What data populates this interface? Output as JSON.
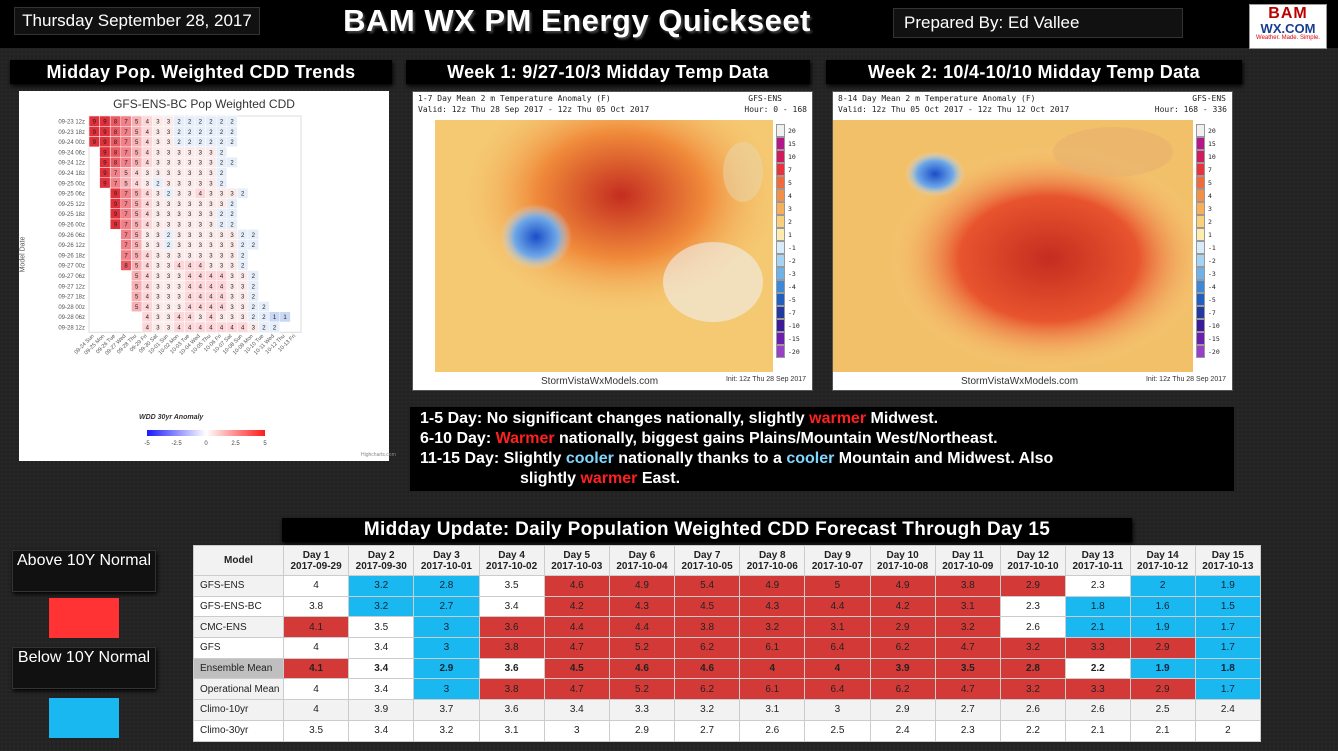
{
  "header": {
    "date": "Thursday September 28, 2017",
    "title": "BAM WX PM Energy Quickseet",
    "prepared": "Prepared By: Ed Vallee",
    "logo_top": "BAM",
    "logo_mid": "WX.COM",
    "logo_bot": "Weather. Made. Simple."
  },
  "sections": {
    "cdd": "Midday Pop. Weighted CDD Trends",
    "week1": "Week 1: 9/27-10/3 Midday Temp Data",
    "week2": "Week 2: 10/4-10/10 Midday Temp Data",
    "daily": "Midday Update: Daily Population Weighted CDD Forecast Through Day 15"
  },
  "cdd_chart": {
    "title": "GFS-ENS-BC Pop Weighted CDD",
    "ylabel": "Model Date",
    "legend_title": "WDD 30yr Anomaly",
    "legend_ticks": [
      "-5",
      "-2.5",
      "0",
      "2.5",
      "5"
    ],
    "credit": "Highcharts.com",
    "rows": [
      "09-23 12z",
      "09-23 18z",
      "09-24 00z",
      "09-24 06z",
      "09-24 12z",
      "09-24 18z",
      "09-25 00z",
      "09-25 06z",
      "09-25 12z",
      "09-25 18z",
      "09-26 00z",
      "09-26 06z",
      "09-26 12z",
      "09-26 18z",
      "09-27 00z",
      "09-27 06z",
      "09-27 12z",
      "09-27 18z",
      "09-28 00z",
      "09-28 06z",
      "09-28 12z"
    ],
    "cols": [
      "09-24 Sun",
      "09-25 Mon",
      "09-26 Tue",
      "09-27 Wed",
      "09-28 Thu",
      "09-29 Fri",
      "09-30 Sat",
      "10-01 Sun",
      "10-02 Mon",
      "10-03 Tue",
      "10-04 Wed",
      "10-05 Thu",
      "10-06 Fri",
      "10-07 Sat",
      "10-08 Sun",
      "10-09 Mon",
      "10-10 Tue",
      "10-11 Wed",
      "10-12 Thu",
      "10-13 Fri"
    ]
  },
  "map1": {
    "title": "1-7 Day Mean 2 m Temperature Anomaly (F)",
    "model": "GFS-ENS",
    "valid": "Valid: 12z Thu 28 Sep 2017 - 12z Thu 05 Oct 2017",
    "hour": "Hour: 0 - 168",
    "site": "StormVistaWxModels.com",
    "init": "Init: 12z Thu 28 Sep 2017"
  },
  "map2": {
    "title": "8-14 Day Mean 2 m Temperature Anomaly (F)",
    "model": "GFS-ENS",
    "valid": "Valid: 12z Thu 05 Oct 2017 - 12z Thu 12 Oct 2017",
    "hour": "Hour: 168 - 336",
    "site": "StormVistaWxModels.com",
    "init": "Init: 12z Thu 28 Sep 2017"
  },
  "map_scale": [
    "20",
    "15",
    "10",
    "7",
    "5",
    "4",
    "3",
    "2",
    "1",
    "-1",
    "-2",
    "-3",
    "-4",
    "-5",
    "-7",
    "-10",
    "-15",
    "-20"
  ],
  "notes": {
    "l1a": "1-5 Day: No significant changes nationally, slightly ",
    "l1b": "warmer",
    "l1c": " Midwest.",
    "l2a": "6-10 Day: ",
    "l2b": "Warmer",
    "l2c": " nationally, biggest gains Plains/Mountain West/Northeast.",
    "l3a": "11-15 Day: Slightly ",
    "l3b": "cooler",
    "l3c": " nationally thanks to a ",
    "l3d": "cooler",
    "l3e": " Mountain and Midwest. Also",
    "l4a": "slightly ",
    "l4b": "warmer",
    "l4c": " East."
  },
  "legend": {
    "above": "Above 10Y Normal",
    "below": "Below 10Y Normal",
    "above_color": "#ff3333",
    "below_color": "#1ab8f0"
  },
  "table": {
    "model_header": "Model",
    "days": [
      [
        "Day 1",
        "2017-09-29"
      ],
      [
        "Day 2",
        "2017-09-30"
      ],
      [
        "Day 3",
        "2017-10-01"
      ],
      [
        "Day 4",
        "2017-10-02"
      ],
      [
        "Day 5",
        "2017-10-03"
      ],
      [
        "Day 6",
        "2017-10-04"
      ],
      [
        "Day 7",
        "2017-10-05"
      ],
      [
        "Day 8",
        "2017-10-06"
      ],
      [
        "Day 9",
        "2017-10-07"
      ],
      [
        "Day 10",
        "2017-10-08"
      ],
      [
        "Day 11",
        "2017-10-09"
      ],
      [
        "Day 12",
        "2017-10-10"
      ],
      [
        "Day 13",
        "2017-10-11"
      ],
      [
        "Day 14",
        "2017-10-12"
      ],
      [
        "Day 15",
        "2017-10-13"
      ]
    ],
    "rows": [
      {
        "model": "GFS-ENS",
        "vals": [
          "4",
          "3.2",
          "2.8",
          "3.5",
          "4.6",
          "4.9",
          "5.4",
          "4.9",
          "5",
          "4.9",
          "3.8",
          "2.9",
          "2.3",
          "2",
          "1.9"
        ],
        "cls": [
          "w",
          "b",
          "b",
          "w",
          "r",
          "r",
          "r",
          "r",
          "r",
          "r",
          "r",
          "r",
          "w",
          "b",
          "b"
        ]
      },
      {
        "model": "GFS-ENS-BC",
        "vals": [
          "3.8",
          "3.2",
          "2.7",
          "3.4",
          "4.2",
          "4.3",
          "4.5",
          "4.3",
          "4.4",
          "4.2",
          "3.1",
          "2.3",
          "1.8",
          "1.6",
          "1.5"
        ],
        "cls": [
          "w",
          "b",
          "b",
          "w",
          "r",
          "r",
          "r",
          "r",
          "r",
          "r",
          "r",
          "w",
          "b",
          "b",
          "b"
        ]
      },
      {
        "model": "CMC-ENS",
        "vals": [
          "4.1",
          "3.5",
          "3",
          "3.6",
          "4.4",
          "4.4",
          "3.8",
          "3.2",
          "3.1",
          "2.9",
          "3.2",
          "2.6",
          "2.1",
          "1.9",
          "1.7"
        ],
        "cls": [
          "r",
          "w",
          "b",
          "r",
          "r",
          "r",
          "r",
          "r",
          "r",
          "r",
          "r",
          "w",
          "b",
          "b",
          "b"
        ]
      },
      {
        "model": "GFS",
        "vals": [
          "4",
          "3.4",
          "3",
          "3.8",
          "4.7",
          "5.2",
          "6.2",
          "6.1",
          "6.4",
          "6.2",
          "4.7",
          "3.2",
          "3.3",
          "2.9",
          "1.7"
        ],
        "cls": [
          "w",
          "w",
          "b",
          "r",
          "r",
          "r",
          "r",
          "r",
          "r",
          "r",
          "r",
          "r",
          "r",
          "r",
          "b"
        ]
      },
      {
        "model": "Ensemble Mean",
        "vals": [
          "4.1",
          "3.4",
          "2.9",
          "3.6",
          "4.5",
          "4.6",
          "4.6",
          "4",
          "4",
          "3.9",
          "3.5",
          "2.8",
          "2.2",
          "1.9",
          "1.8"
        ],
        "cls": [
          "r",
          "w",
          "b",
          "w",
          "r",
          "r",
          "r",
          "r",
          "r",
          "r",
          "r",
          "r",
          "w",
          "b",
          "b"
        ]
      },
      {
        "model": "Operational Mean",
        "vals": [
          "4",
          "3.4",
          "3",
          "3.8",
          "4.7",
          "5.2",
          "6.2",
          "6.1",
          "6.4",
          "6.2",
          "4.7",
          "3.2",
          "3.3",
          "2.9",
          "1.7"
        ],
        "cls": [
          "w",
          "w",
          "b",
          "r",
          "r",
          "r",
          "r",
          "r",
          "r",
          "r",
          "r",
          "r",
          "r",
          "r",
          "b"
        ]
      },
      {
        "model": "Climo-10yr",
        "vals": [
          "4",
          "3.9",
          "3.7",
          "3.6",
          "3.4",
          "3.3",
          "3.2",
          "3.1",
          "3",
          "2.9",
          "2.7",
          "2.6",
          "2.6",
          "2.5",
          "2.4"
        ],
        "cls": [
          "g",
          "g",
          "g",
          "g",
          "g",
          "g",
          "g",
          "g",
          "g",
          "g",
          "g",
          "g",
          "g",
          "g",
          "g"
        ]
      },
      {
        "model": "Climo-30yr",
        "vals": [
          "3.5",
          "3.4",
          "3.2",
          "3.1",
          "3",
          "2.9",
          "2.7",
          "2.6",
          "2.5",
          "2.4",
          "2.3",
          "2.2",
          "2.1",
          "2.1",
          "2"
        ],
        "cls": [
          "w",
          "w",
          "w",
          "w",
          "w",
          "w",
          "w",
          "w",
          "w",
          "w",
          "w",
          "w",
          "w",
          "w",
          "w"
        ]
      }
    ]
  }
}
